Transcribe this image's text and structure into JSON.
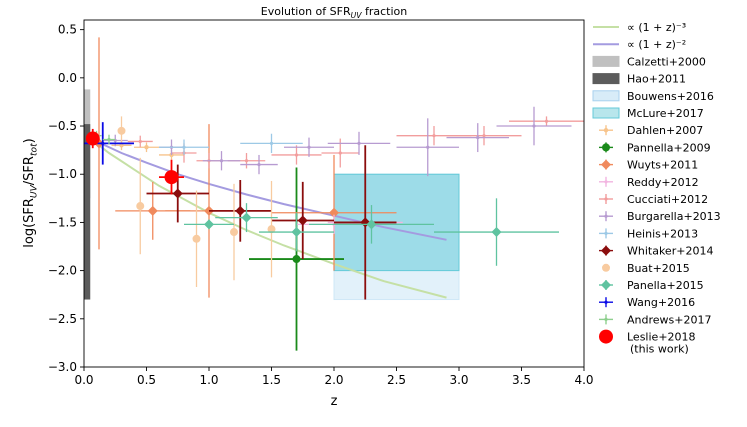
{
  "chart_data": {
    "type": "scatter",
    "title": "Evolution of SFR$_{UV}$ fraction",
    "title_parts": [
      "Evolution of SFR",
      "UV",
      " fraction"
    ],
    "xlabel": "z",
    "ylabel": "log(SFR$_{UV}$/SFR$_{tot}$)",
    "ylabel_parts": [
      "log(SFR",
      "UV",
      "/SFR",
      "tot",
      ")"
    ],
    "xlim": [
      0.0,
      4.0
    ],
    "ylim": [
      -3.0,
      0.6
    ],
    "x_ticks": [
      0.0,
      0.5,
      1.0,
      1.5,
      2.0,
      2.5,
      3.0,
      3.5,
      4.0
    ],
    "x_tick_labels": [
      "0.0",
      "0.5",
      "1.0",
      "1.5",
      "2.0",
      "2.5",
      "3.0",
      "3.5",
      "4.0"
    ],
    "y_ticks": [
      0.5,
      0.0,
      -0.5,
      -1.0,
      -1.5,
      -2.0,
      -2.5,
      -3.0
    ],
    "y_tick_labels": [
      "0.5",
      "0.0",
      "−0.5",
      "−1.0",
      "−1.5",
      "−2.0",
      "−2.5",
      "−3.0"
    ],
    "lines": [
      {
        "name": "∝ (1 + z)⁻³",
        "color": "#c5e0a5",
        "x": [
          0.04,
          0.1,
          0.2,
          0.4,
          0.6,
          0.8,
          1.0,
          1.3,
          1.6,
          2.0,
          2.4,
          2.9
        ],
        "y": [
          -0.63,
          -0.68,
          -0.78,
          -0.95,
          -1.12,
          -1.26,
          -1.4,
          -1.58,
          -1.74,
          -1.93,
          -2.11,
          -2.28
        ]
      },
      {
        "name": "∝ (1 + z)⁻²",
        "color": "#a49be0",
        "x": [
          0.04,
          0.1,
          0.3,
          0.5,
          0.75,
          1.0,
          1.3,
          1.6,
          2.0,
          2.4,
          2.9
        ],
        "y": [
          -0.63,
          -0.66,
          -0.78,
          -0.88,
          -1.0,
          -1.1,
          -1.21,
          -1.31,
          -1.43,
          -1.55,
          -1.68
        ]
      }
    ],
    "bands": [
      {
        "name": "Calzetti+2000",
        "color": "#c0c0c0",
        "x0": 0.0,
        "x1": 0.05,
        "y0": -1.25,
        "y1": -0.12
      },
      {
        "name": "Hao+2011",
        "color": "#5c5c5c",
        "x0": 0.0,
        "x1": 0.05,
        "y0": -2.3,
        "y1": -0.48
      }
    ],
    "boxes": [
      {
        "name": "Bouwens+2016",
        "color": "#cfe8f7",
        "x0": 2.0,
        "x1": 3.0,
        "y0": -2.3,
        "y1": -1.0,
        "opacity": 0.6
      },
      {
        "name": "McLure+2017",
        "color": "#64cad8",
        "x0": 2.0,
        "x1": 3.0,
        "y0": -2.0,
        "y1": -1.0,
        "opacity": 0.55
      }
    ],
    "series": [
      {
        "name": "Dahlen+2007",
        "color": "#f7c48c",
        "marker": "dot",
        "points": [
          {
            "x": 0.3,
            "y": -0.7,
            "xerr": 0.08,
            "yerr": 0.05
          },
          {
            "x": 0.5,
            "y": -0.72,
            "xerr": 0.1,
            "yerr": 0.05
          },
          {
            "x": 0.7,
            "y": -0.8,
            "xerr": 0.1,
            "yerr": 0.05
          }
        ]
      },
      {
        "name": "Pannella+2009",
        "color": "#1a8a1a",
        "marker": "circle",
        "points": [
          {
            "x": 1.7,
            "y": -1.88,
            "xerr": 0.38,
            "yerr": 0.95
          }
        ]
      },
      {
        "name": "Wuyts+2011",
        "color": "#f08a5d",
        "marker": "diamond",
        "points": [
          {
            "x": 0.12,
            "y": -0.68,
            "xerr": 0.05,
            "yerr": 1.1
          },
          {
            "x": 0.55,
            "y": -1.38,
            "xerr": 0.3,
            "yerr": 0.3
          },
          {
            "x": 1.0,
            "y": -1.38,
            "xerr": 0.35,
            "yerr": 0.9
          },
          {
            "x": 2.0,
            "y": -1.4,
            "xerr": 0.5,
            "yerr": 0.6
          }
        ]
      },
      {
        "name": "Reddy+2012",
        "color": "#f2b5e0",
        "marker": "cross",
        "points": [
          {
            "x": 2.0,
            "y": -1.52,
            "xerr": 0.3,
            "yerr": 0.1
          },
          {
            "x": 2.25,
            "y": -1.5,
            "xerr": 0.3,
            "yerr": 0.1
          }
        ]
      },
      {
        "name": "Cucciati+2012",
        "color": "#f29d9d",
        "marker": "cross",
        "points": [
          {
            "x": 0.45,
            "y": -0.66,
            "xerr": 0.1,
            "yerr": 0.06
          },
          {
            "x": 0.8,
            "y": -0.78,
            "xerr": 0.1,
            "yerr": 0.1
          },
          {
            "x": 1.0,
            "y": -0.86,
            "xerr": 0.1,
            "yerr": 0.08
          },
          {
            "x": 1.3,
            "y": -0.86,
            "xerr": 0.15,
            "yerr": 0.08
          },
          {
            "x": 1.7,
            "y": -0.8,
            "xerr": 0.2,
            "yerr": 0.1
          },
          {
            "x": 2.05,
            "y": -0.78,
            "xerr": 0.15,
            "yerr": 0.15
          },
          {
            "x": 2.8,
            "y": -0.6,
            "xerr": 0.3,
            "yerr": 0.1
          },
          {
            "x": 3.2,
            "y": -0.6,
            "xerr": 0.3,
            "yerr": 0.1
          },
          {
            "x": 3.7,
            "y": -0.45,
            "xerr": 0.3,
            "yerr": 0.05
          }
        ]
      },
      {
        "name": "Burgarella+2013",
        "color": "#b79bd1",
        "marker": "cross",
        "points": [
          {
            "x": 0.25,
            "y": -0.65,
            "xerr": 0.1,
            "yerr": 0.06
          },
          {
            "x": 0.7,
            "y": -0.72,
            "xerr": 0.1,
            "yerr": 0.08
          },
          {
            "x": 1.1,
            "y": -0.86,
            "xerr": 0.15,
            "yerr": 0.1
          },
          {
            "x": 1.4,
            "y": -0.9,
            "xerr": 0.15,
            "yerr": 0.1
          },
          {
            "x": 1.8,
            "y": -0.72,
            "xerr": 0.2,
            "yerr": 0.1
          },
          {
            "x": 2.2,
            "y": -0.68,
            "xerr": 0.25,
            "yerr": 0.12
          },
          {
            "x": 2.75,
            "y": -0.72,
            "xerr": 0.25,
            "yerr": 0.3
          },
          {
            "x": 3.15,
            "y": -0.62,
            "xerr": 0.25,
            "yerr": 0.15
          },
          {
            "x": 3.6,
            "y": -0.5,
            "xerr": 0.3,
            "yerr": 0.2
          }
        ]
      },
      {
        "name": "Heinis+2013",
        "color": "#9dc9e6",
        "marker": "cross",
        "points": [
          {
            "x": 0.8,
            "y": -0.72,
            "xerr": 0.2,
            "yerr": 0.08
          },
          {
            "x": 1.5,
            "y": -0.68,
            "xerr": 0.25,
            "yerr": 0.1
          }
        ]
      },
      {
        "name": "Whitaker+2014",
        "color": "#8b0d0d",
        "marker": "diamond",
        "points": [
          {
            "x": 0.75,
            "y": -1.2,
            "xerr": 0.25,
            "yerr": 0.3
          },
          {
            "x": 1.25,
            "y": -1.38,
            "xerr": 0.25,
            "yerr": 0.32
          },
          {
            "x": 1.75,
            "y": -1.48,
            "xerr": 0.25,
            "yerr": 0.4
          },
          {
            "x": 2.25,
            "y": -1.5,
            "xerr": 0.25,
            "yerr": 0.8
          }
        ]
      },
      {
        "name": "Buat+2015",
        "color": "#f8cba0",
        "marker": "circle",
        "points": [
          {
            "x": 0.3,
            "y": -0.55,
            "xerr": 0.0,
            "yerr": 0.15
          },
          {
            "x": 0.45,
            "y": -1.33,
            "xerr": 0.0,
            "yerr": 0.5
          },
          {
            "x": 0.9,
            "y": -1.67,
            "xerr": 0.0,
            "yerr": 0.5
          },
          {
            "x": 1.2,
            "y": -1.6,
            "xerr": 0.0,
            "yerr": 0.5
          },
          {
            "x": 1.5,
            "y": -1.57,
            "xerr": 0.0,
            "yerr": 0.5
          }
        ]
      },
      {
        "name": "Panella+2015",
        "color": "#5fc3a0",
        "marker": "diamond",
        "points": [
          {
            "x": 1.0,
            "y": -1.52,
            "xerr": 0.2,
            "yerr": 0.05
          },
          {
            "x": 1.3,
            "y": -1.45,
            "xerr": 0.25,
            "yerr": 0.15
          },
          {
            "x": 1.7,
            "y": -1.6,
            "xerr": 0.3,
            "yerr": 0.2
          },
          {
            "x": 2.3,
            "y": -1.52,
            "xerr": 0.5,
            "yerr": 0.2
          },
          {
            "x": 3.3,
            "y": -1.6,
            "xerr": 0.5,
            "yerr": 0.35
          }
        ]
      },
      {
        "name": "Wang+2016",
        "color": "#0a0ae6",
        "marker": "cross",
        "points": [
          {
            "x": 0.15,
            "y": -0.68,
            "xerr": 0.25,
            "yerr": 0.22
          }
        ]
      },
      {
        "name": "Andrews+2017",
        "color": "#8ecf8e",
        "marker": "cross",
        "points": [
          {
            "x": 0.05,
            "y": -0.62,
            "xerr": 0.03,
            "yerr": 0.05
          },
          {
            "x": 0.1,
            "y": -0.6,
            "xerr": 0.04,
            "yerr": 0.05
          },
          {
            "x": 0.2,
            "y": -0.64,
            "xerr": 0.05,
            "yerr": 0.05
          }
        ]
      },
      {
        "name": "Leslie+2018\n(this work)",
        "color": "#ff0000",
        "marker": "bigcircle",
        "points": [
          {
            "x": 0.07,
            "y": -0.63,
            "xerr": 0.04,
            "yerr": 0.1
          },
          {
            "x": 0.7,
            "y": -1.03,
            "xerr": 0.1,
            "yerr": 0.18
          }
        ]
      }
    ],
    "legend": {
      "placement": "outside-right",
      "entries": [
        {
          "label": "∝ (1 + z)⁻³",
          "kind": "line",
          "color": "#c5e0a5"
        },
        {
          "label": "∝ (1 + z)⁻²",
          "kind": "line",
          "color": "#a49be0"
        },
        {
          "label": "Calzetti+2000",
          "kind": "patch",
          "color": "#c0c0c0"
        },
        {
          "label": "Hao+2011",
          "kind": "patch",
          "color": "#5c5c5c"
        },
        {
          "label": "Bouwens+2016",
          "kind": "patch",
          "color": "#d8ecf8",
          "edge": "#a9d1ee"
        },
        {
          "label": "McLure+2017",
          "kind": "patch",
          "color": "#b8e6ec",
          "edge": "#64cad8"
        },
        {
          "label": "Dahlen+2007",
          "kind": "errdot",
          "color": "#f7c48c"
        },
        {
          "label": "Pannella+2009",
          "kind": "errcircle",
          "color": "#1a8a1a"
        },
        {
          "label": "Wuyts+2011",
          "kind": "errdiamond",
          "color": "#f08a5d"
        },
        {
          "label": "Reddy+2012",
          "kind": "errcross",
          "color": "#f2b5e0"
        },
        {
          "label": "Cucciati+2012",
          "kind": "errcross",
          "color": "#f29d9d"
        },
        {
          "label": "Burgarella+2013",
          "kind": "errcross",
          "color": "#b79bd1"
        },
        {
          "label": "Heinis+2013",
          "kind": "errcross",
          "color": "#9dc9e6"
        },
        {
          "label": "Whitaker+2014",
          "kind": "errdiamond",
          "color": "#8b0d0d"
        },
        {
          "label": "Buat+2015",
          "kind": "circle",
          "color": "#f8cba0"
        },
        {
          "label": "Panella+2015",
          "kind": "errdiamond",
          "color": "#5fc3a0"
        },
        {
          "label": "Wang+2016",
          "kind": "errcross",
          "color": "#0a0ae6"
        },
        {
          "label": "Andrews+2017",
          "kind": "errcross",
          "color": "#8ecf8e"
        },
        {
          "label": "Leslie+2018",
          "label2": "(this work)",
          "kind": "bigcircle",
          "color": "#ff0000"
        }
      ]
    }
  }
}
